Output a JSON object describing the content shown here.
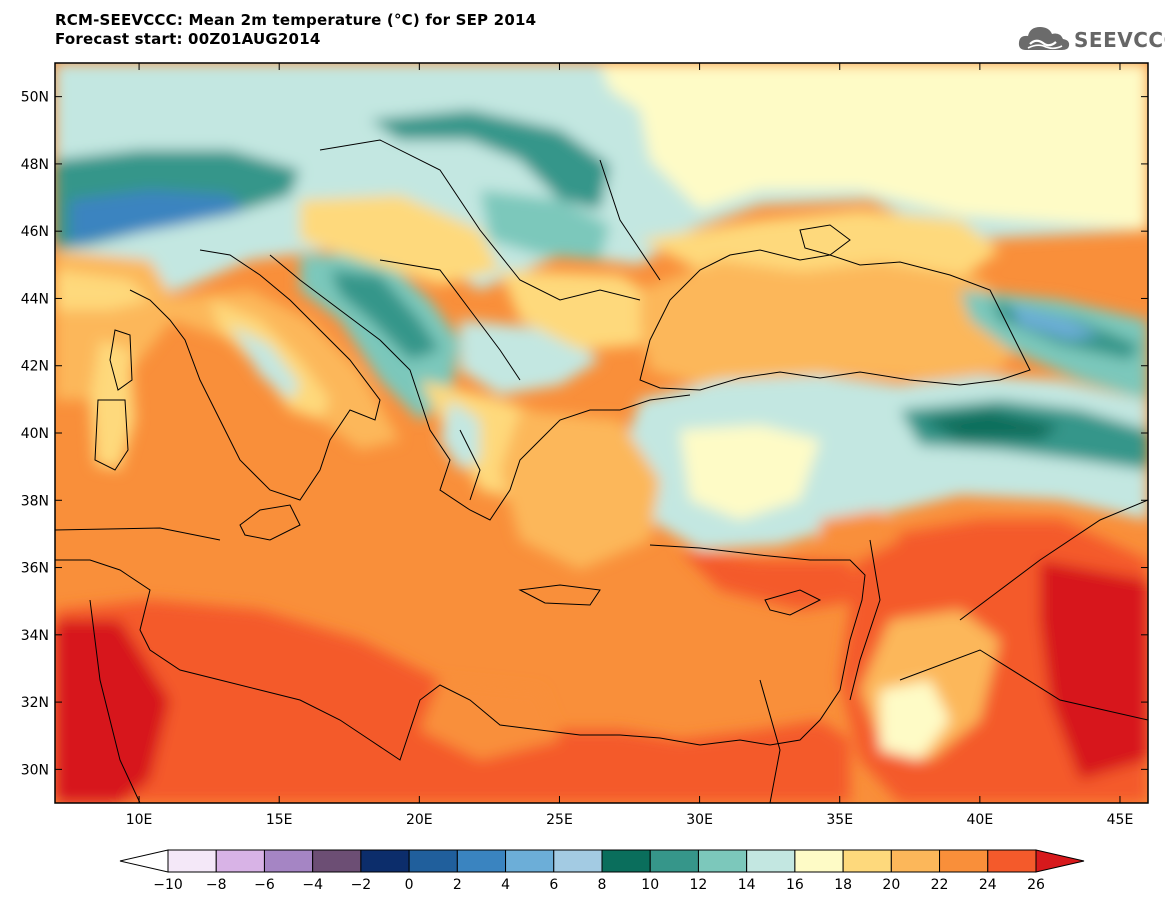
{
  "header": {
    "title_line1": "RCM-SEEVCCC: Mean 2m temperature (°C) for SEP 2014",
    "title_line2": "Forecast start: 00Z01AUG2014"
  },
  "logo": {
    "text": "SEEVCCC",
    "icon": "cloud-icon",
    "color": "#666666"
  },
  "map": {
    "lon_range": [
      7,
      46
    ],
    "lat_range": [
      29,
      51
    ],
    "lon_ticks": [
      {
        "value": 10,
        "label": "10E"
      },
      {
        "value": 15,
        "label": "15E"
      },
      {
        "value": 20,
        "label": "20E"
      },
      {
        "value": 25,
        "label": "25E"
      },
      {
        "value": 30,
        "label": "30E"
      },
      {
        "value": 35,
        "label": "35E"
      },
      {
        "value": 40,
        "label": "40E"
      },
      {
        "value": 45,
        "label": "45E"
      }
    ],
    "lat_ticks": [
      {
        "value": 30,
        "label": "30N"
      },
      {
        "value": 32,
        "label": "32N"
      },
      {
        "value": 34,
        "label": "34N"
      },
      {
        "value": 36,
        "label": "36N"
      },
      {
        "value": 38,
        "label": "38N"
      },
      {
        "value": 40,
        "label": "40N"
      },
      {
        "value": 42,
        "label": "42N"
      },
      {
        "value": 44,
        "label": "44N"
      },
      {
        "value": 46,
        "label": "46N"
      },
      {
        "value": 48,
        "label": "48N"
      },
      {
        "value": 50,
        "label": "50N"
      }
    ]
  },
  "colorbar": {
    "levels": [
      "-10",
      "-8",
      "-6",
      "-4",
      "-2",
      "0",
      "2",
      "4",
      "6",
      "8",
      "10",
      "12",
      "14",
      "16",
      "18",
      "20",
      "22",
      "24",
      "26"
    ],
    "below_color": "#ffffff",
    "above_color": "#d7191c",
    "colors": [
      "#f4e8f8",
      "#d8b3e6",
      "#a585c4",
      "#6c4e74",
      "#0c2d6b",
      "#205f9c",
      "#3a84c0",
      "#6caed8",
      "#a3cbe3",
      "#0a6e5c",
      "#36968a",
      "#7cc8bb",
      "#c3e7e1",
      "#fefbc6",
      "#fed97c",
      "#fcb75a",
      "#f98f3a",
      "#f45a2b"
    ]
  }
}
